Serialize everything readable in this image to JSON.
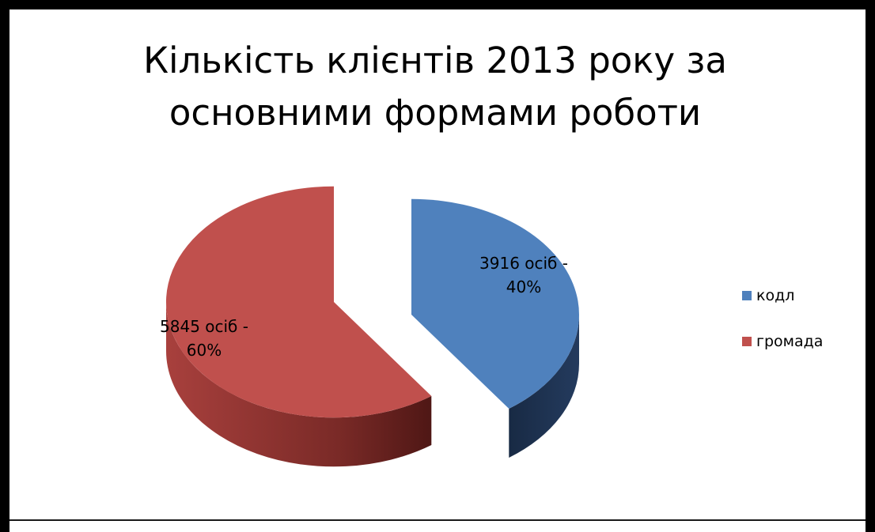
{
  "chart_data": {
    "type": "pie",
    "title_lines": [
      "Кількість клієнтів 2013 року за",
      "основними формами роботи"
    ],
    "slices": [
      {
        "name": "кодл",
        "value": 3916,
        "percent": 40,
        "label_lines": [
          "3916  осіб -",
          "40%"
        ],
        "color": "#4f81bd",
        "side_color": "#1f3453"
      },
      {
        "name": "громада",
        "value": 5845,
        "percent": 60,
        "label_lines": [
          "5845 осіб  -",
          "60%"
        ],
        "color": "#c0504d",
        "side_color": "#7c2523"
      }
    ],
    "style": "3d-exploded",
    "legend_position": "right"
  }
}
